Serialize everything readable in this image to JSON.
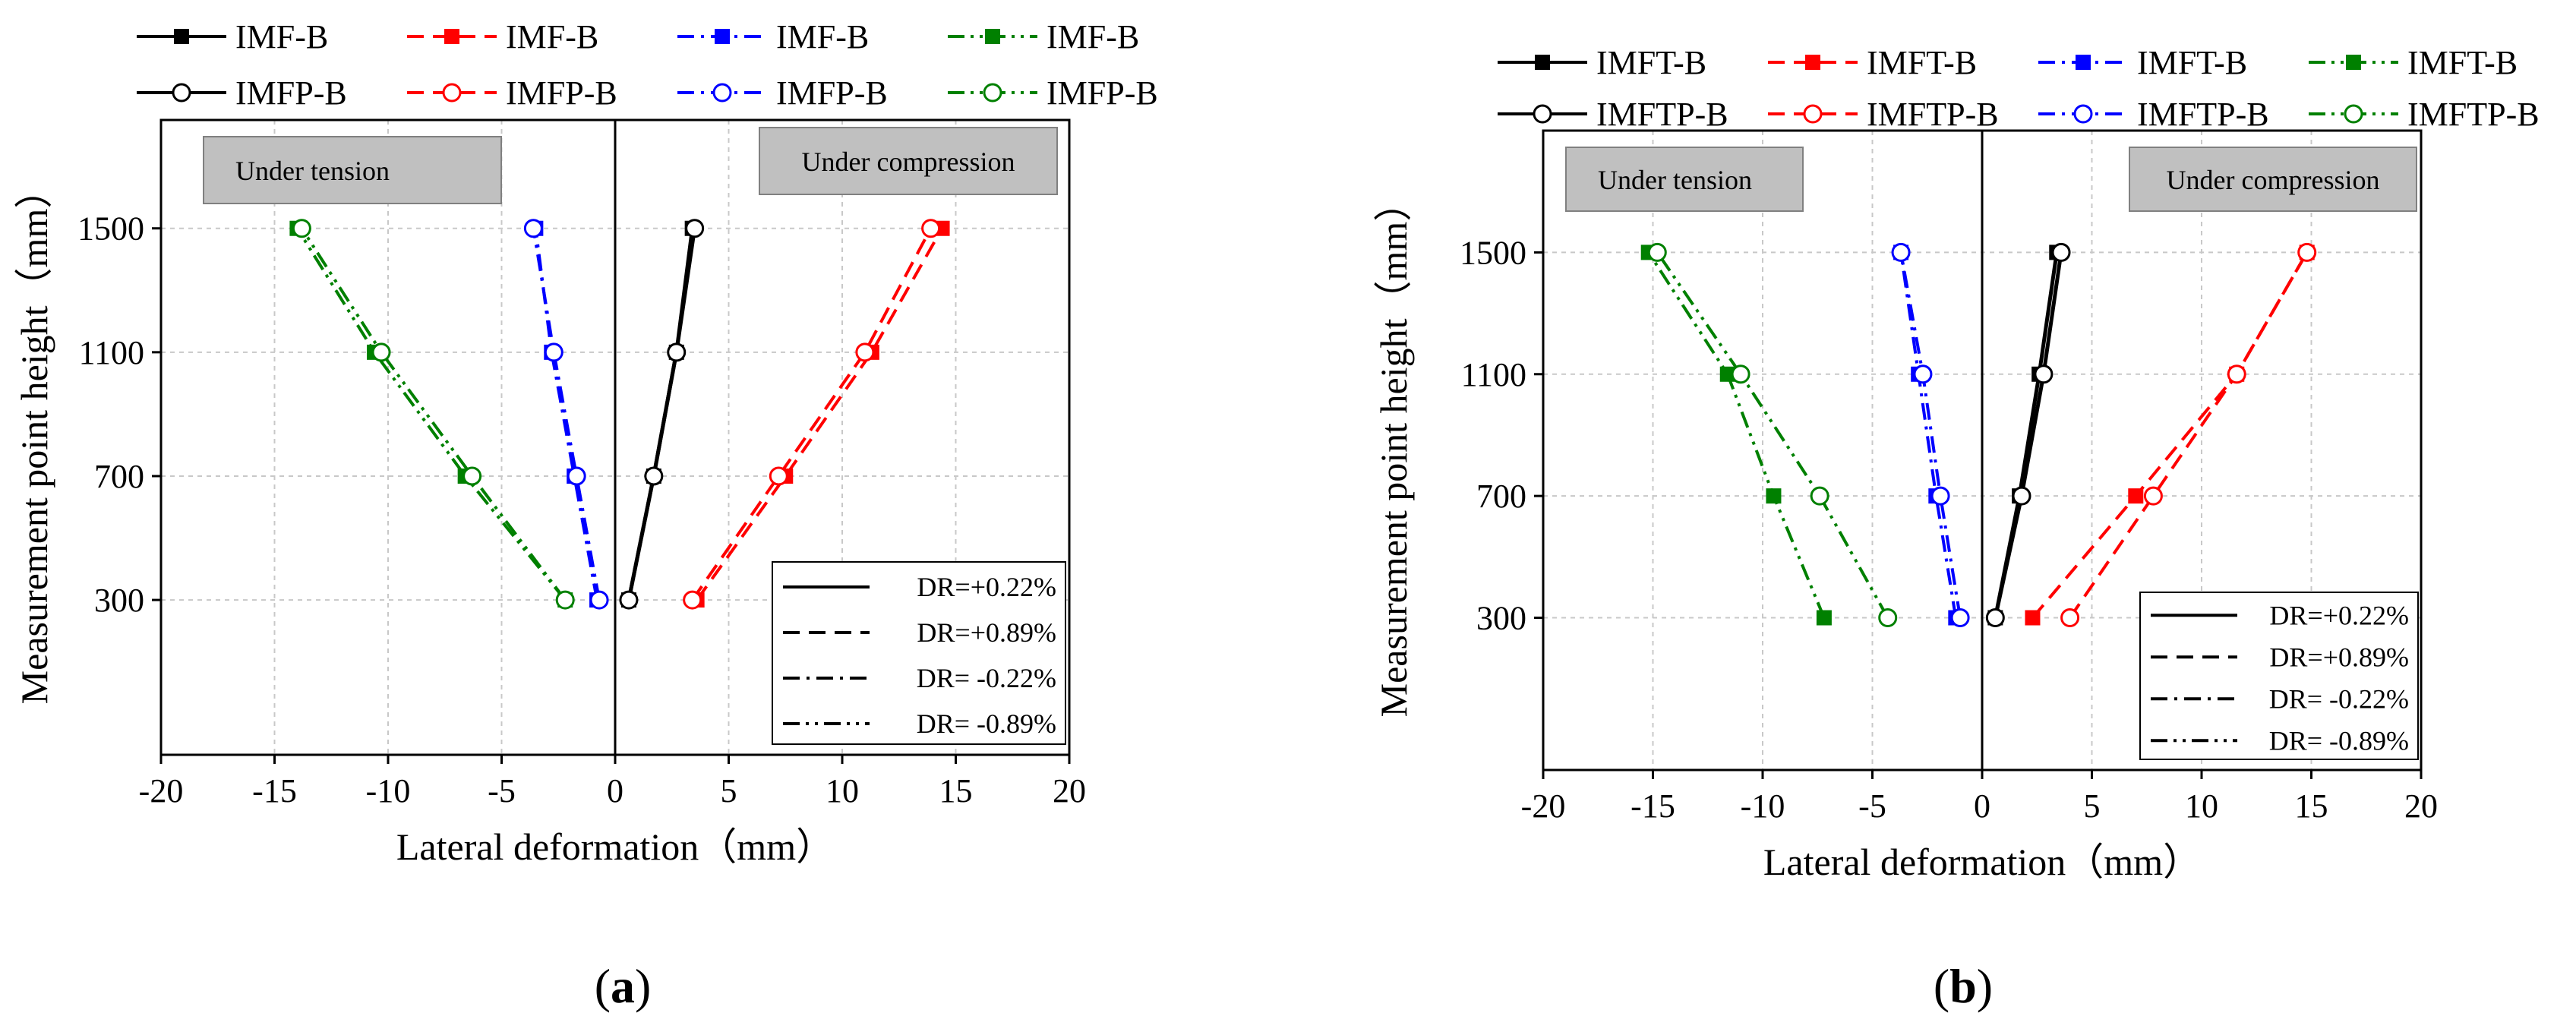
{
  "figure": {
    "captions": [
      "(a)",
      "(b)"
    ]
  },
  "chart_data": [
    {
      "type": "line",
      "panel_label": "a",
      "xlabel": "Lateral deformation（mm）",
      "ylabel": "Measurement point height（mm）",
      "xlim": [
        -20,
        20
      ],
      "ylim": [
        -200,
        1850
      ],
      "xticks": [
        -20,
        -15,
        -10,
        -5,
        0,
        5,
        10,
        15,
        20
      ],
      "yticks": [
        300,
        700,
        1100,
        1500
      ],
      "grid": true,
      "region_labels": {
        "left": "Under tension",
        "right": "Under compression"
      },
      "dr_legend": [
        "DR=+0.22%",
        "DR=+0.89%",
        "DR= -0.22%",
        "DR= -0.89%"
      ],
      "series": [
        {
          "name": "IMF-B",
          "color": "#000000",
          "dash": "solid",
          "marker": "square-filled",
          "x": [
            0.6,
            1.7,
            2.7,
            3.4
          ],
          "y": [
            300,
            700,
            1100,
            1500
          ]
        },
        {
          "name": "IMF-B",
          "color": "#ff0000",
          "dash": "dashed",
          "marker": "square-filled",
          "x": [
            3.6,
            7.5,
            11.3,
            14.4
          ],
          "y": [
            300,
            700,
            1100,
            1500
          ]
        },
        {
          "name": "IMF-B",
          "color": "#0000ff",
          "dash": "dashdot",
          "marker": "square-filled",
          "x": [
            -0.8,
            -1.8,
            -2.8,
            -3.5
          ],
          "y": [
            300,
            700,
            1100,
            1500
          ]
        },
        {
          "name": "IMF-B",
          "color": "#008000",
          "dash": "dashdotdot",
          "marker": "square-filled",
          "x": [
            -2.2,
            -6.6,
            -10.6,
            -14.0
          ],
          "y": [
            300,
            700,
            1100,
            1500
          ]
        },
        {
          "name": "IMFP-B",
          "color": "#000000",
          "dash": "solid",
          "marker": "circle-open",
          "x": [
            0.6,
            1.7,
            2.7,
            3.5
          ],
          "y": [
            300,
            700,
            1100,
            1500
          ]
        },
        {
          "name": "IMFP-B",
          "color": "#ff0000",
          "dash": "dashed",
          "marker": "circle-open",
          "x": [
            3.4,
            7.2,
            11.0,
            13.9
          ],
          "y": [
            300,
            700,
            1100,
            1500
          ]
        },
        {
          "name": "IMFP-B",
          "color": "#0000ff",
          "dash": "dashdot",
          "marker": "circle-open",
          "x": [
            -0.7,
            -1.7,
            -2.7,
            -3.6
          ],
          "y": [
            300,
            700,
            1100,
            1500
          ]
        },
        {
          "name": "IMFP-B",
          "color": "#008000",
          "dash": "dashdotdot",
          "marker": "circle-open",
          "x": [
            -2.2,
            -6.3,
            -10.3,
            -13.8
          ],
          "y": [
            300,
            700,
            1100,
            1500
          ]
        }
      ]
    },
    {
      "type": "line",
      "panel_label": "b",
      "xlabel": "Lateral deformation（mm）",
      "ylabel": "Measurement point height（mm）",
      "xlim": [
        -20,
        20
      ],
      "ylim": [
        -200,
        1900
      ],
      "xticks": [
        -20,
        -15,
        -10,
        -5,
        0,
        5,
        10,
        15,
        20
      ],
      "yticks": [
        300,
        700,
        1100,
        1500
      ],
      "grid": true,
      "region_labels": {
        "left": "Under tension",
        "right": "Under compression"
      },
      "dr_legend": [
        "DR=+0.22%",
        "DR=+0.89%",
        "DR= -0.22%",
        "DR= -0.89%"
      ],
      "series": [
        {
          "name": "IMFT-B",
          "color": "#000000",
          "dash": "solid",
          "marker": "square-filled",
          "x": [
            0.6,
            1.7,
            2.6,
            3.4
          ],
          "y": [
            300,
            700,
            1100,
            1500
          ]
        },
        {
          "name": "IMFT-B",
          "color": "#ff0000",
          "dash": "dashed",
          "marker": "square-filled",
          "x": [
            2.3,
            7.0,
            11.6,
            14.8
          ],
          "y": [
            300,
            700,
            1100,
            1500
          ]
        },
        {
          "name": "IMFT-B",
          "color": "#0000ff",
          "dash": "dashdot",
          "marker": "square-filled",
          "x": [
            -1.2,
            -2.1,
            -2.9,
            -3.7
          ],
          "y": [
            300,
            700,
            1100,
            1500
          ]
        },
        {
          "name": "IMFT-B",
          "color": "#008000",
          "dash": "dashdotdot",
          "marker": "square-filled",
          "x": [
            -7.2,
            -9.5,
            -11.6,
            -15.2
          ],
          "y": [
            300,
            700,
            1100,
            1500
          ]
        },
        {
          "name": "IMFTP-B",
          "color": "#000000",
          "dash": "solid",
          "marker": "circle-open",
          "x": [
            0.6,
            1.8,
            2.8,
            3.6
          ],
          "y": [
            300,
            700,
            1100,
            1500
          ]
        },
        {
          "name": "IMFTP-B",
          "color": "#ff0000",
          "dash": "dashed",
          "marker": "circle-open",
          "x": [
            4.0,
            7.8,
            11.6,
            14.8
          ],
          "y": [
            300,
            700,
            1100,
            1500
          ]
        },
        {
          "name": "IMFTP-B",
          "color": "#0000ff",
          "dash": "dashdot",
          "marker": "circle-open",
          "x": [
            -1.0,
            -1.9,
            -2.7,
            -3.7
          ],
          "y": [
            300,
            700,
            1100,
            1500
          ]
        },
        {
          "name": "IMFTP-B",
          "color": "#008000",
          "dash": "dashdotdot",
          "marker": "circle-open",
          "x": [
            -4.3,
            -7.4,
            -11.0,
            -14.8
          ],
          "y": [
            300,
            700,
            1100,
            1500
          ]
        }
      ]
    }
  ]
}
